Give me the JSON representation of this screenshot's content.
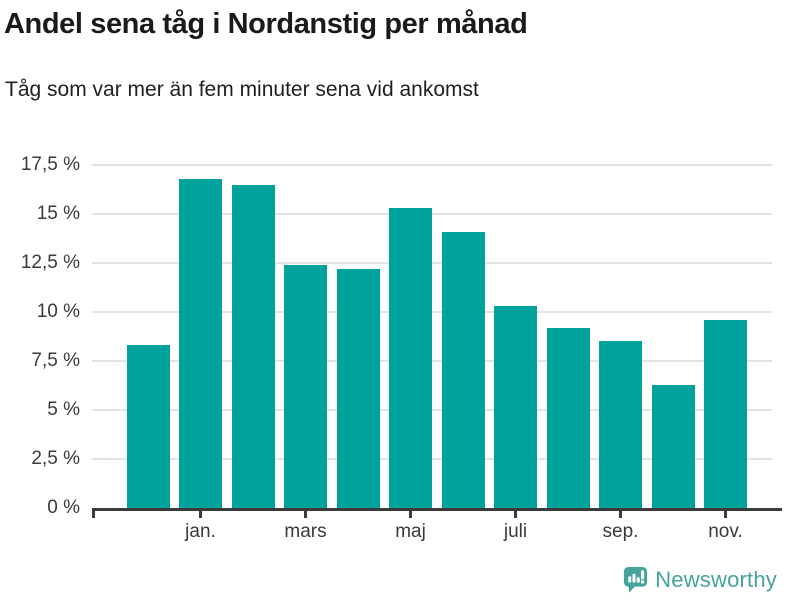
{
  "header": {
    "title": "Andel sena tåg i Nordanstig per månad",
    "subtitle": "Tåg som var mer än fem minuter sena vid ankomst"
  },
  "footer": {
    "brand": "Newsworthy",
    "icon": "newsworthy-speech-bubble-chart-icon"
  },
  "colors": {
    "bar": "#00a39b",
    "brand": "#46a49c",
    "grid": "#e3e3e3",
    "axis": "#3b3b3b",
    "title_text": "#1a1a1a",
    "tick_text": "#3a3a3a"
  },
  "chart_data": {
    "type": "bar",
    "title": "Andel sena tåg i Nordanstig per månad",
    "subtitle": "Tåg som var mer än fem minuter sena vid ankomst",
    "xlabel": "",
    "ylabel": "",
    "unit": "%",
    "decimal_separator": ",",
    "ylim": [
      0,
      17.5
    ],
    "yticks": [
      0,
      2.5,
      5,
      7.5,
      10,
      12.5,
      15,
      17.5
    ],
    "ytick_labels": [
      "0 %",
      "2,5 %",
      "5 %",
      "7,5 %",
      "10 %",
      "12,5 %",
      "15 %",
      "17,5 %"
    ],
    "grid": "horizontal",
    "legend": "none",
    "bars": [
      {
        "x_label": "",
        "value": 8.3
      },
      {
        "x_label": "jan.",
        "value": 16.8
      },
      {
        "x_label": "",
        "value": 16.5
      },
      {
        "x_label": "mars",
        "value": 12.4
      },
      {
        "x_label": "",
        "value": 12.2
      },
      {
        "x_label": "maj",
        "value": 15.3
      },
      {
        "x_label": "",
        "value": 14.1
      },
      {
        "x_label": "juli",
        "value": 10.3
      },
      {
        "x_label": "",
        "value": 9.2
      },
      {
        "x_label": "sep.",
        "value": 8.5
      },
      {
        "x_label": "",
        "value": 6.3
      },
      {
        "x_label": "nov.",
        "value": 9.6
      }
    ]
  }
}
